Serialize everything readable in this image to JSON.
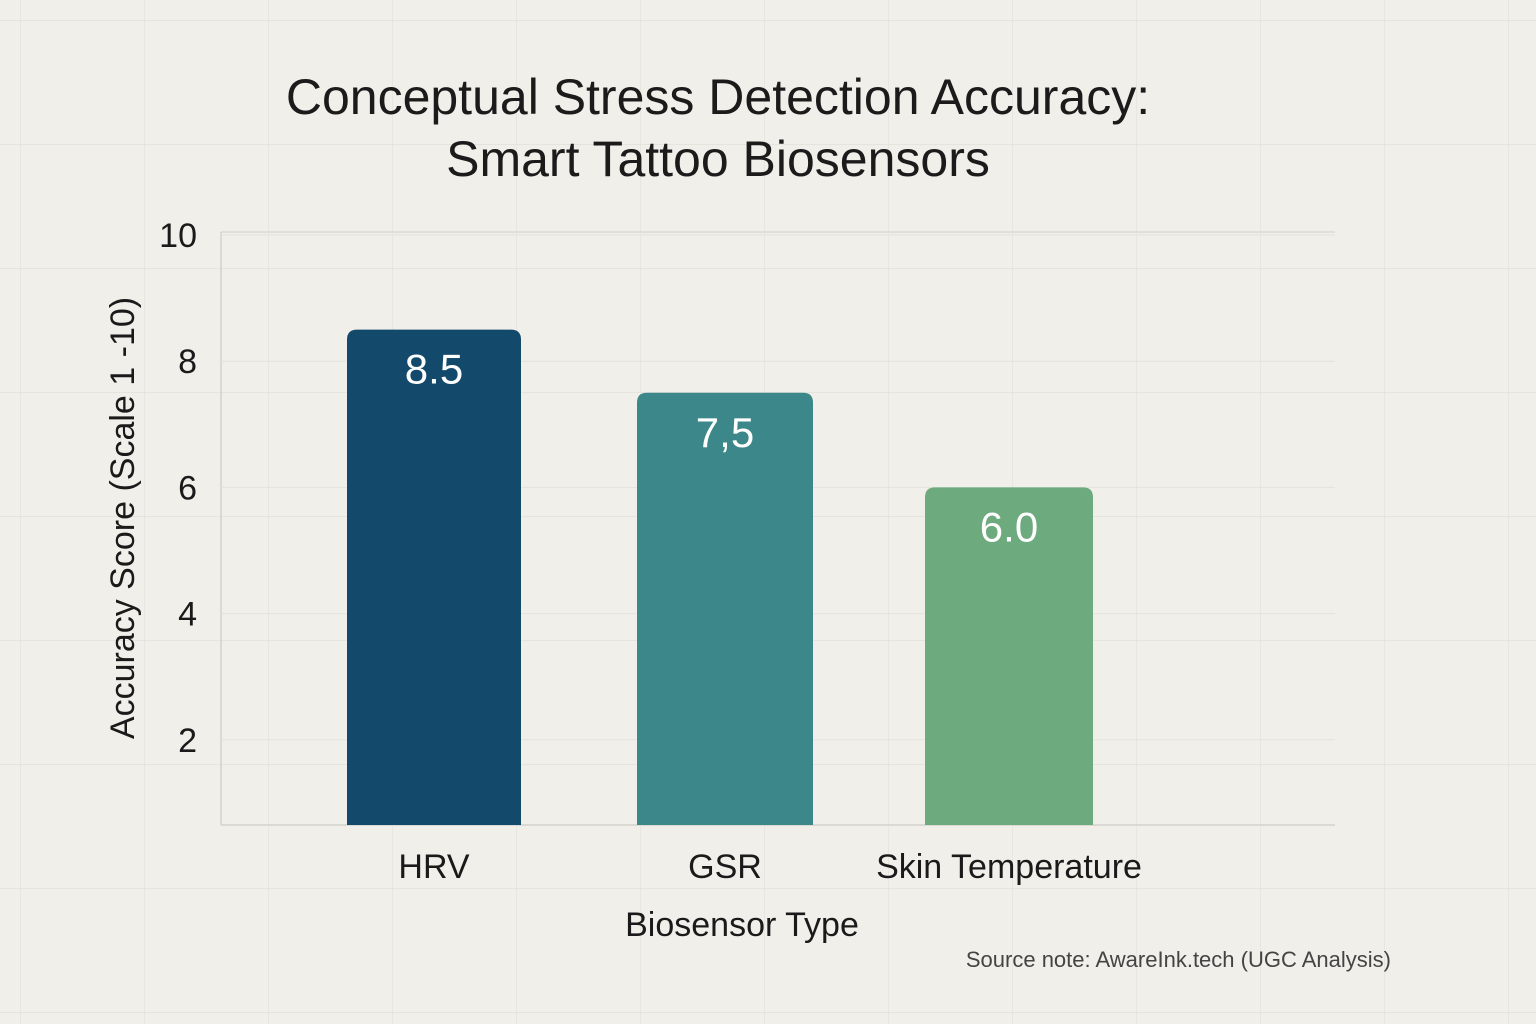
{
  "chart_data": {
    "type": "bar",
    "title": [
      "Conceptual Stress Detection Accuracy:",
      "Smart Tattoo Biosensors"
    ],
    "xlabel": "Biosensor Type",
    "ylabel": "Accuracy Score (Scale 1 -10)",
    "categories": [
      "HRV",
      "GSR",
      "Skin Temperature"
    ],
    "values": [
      8.5,
      7.5,
      6.0
    ],
    "data_labels": [
      "8.5",
      "7,5",
      "6.0"
    ],
    "colors": [
      "#134a6c",
      "#3b8789",
      "#6dab7f"
    ],
    "yticks": [
      2,
      4,
      6,
      8,
      10
    ],
    "ylim": [
      0,
      10
    ],
    "grid": true,
    "source_note": "Source note: AwareInk.tech (UGC Analysis)"
  }
}
